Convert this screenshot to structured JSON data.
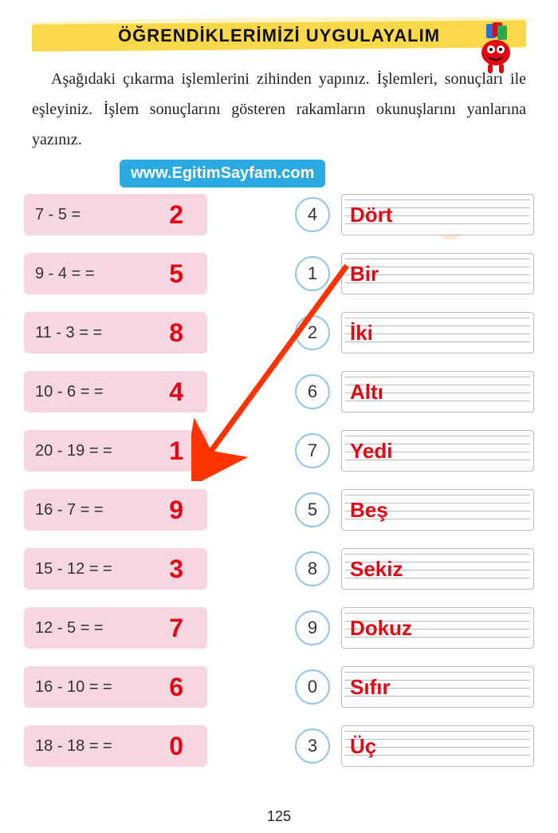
{
  "header": {
    "title": "ÖĞRENDİKLERİMİZİ UYGULAYALIM",
    "banner_color": "#f9d94a"
  },
  "instructions": "Aşağıdaki çıkarma işlemlerini zihinden yapınız. İşlemleri, sonuçları ile eşleyiniz. İşlem sonuçlarını gösteren rakamların okunuşlarını yanlarına yazınız.",
  "watermark": "www.EgitimSayfam.com",
  "watermark_bg": "#29abe2",
  "problems": [
    {
      "expr": "7 - 5 =",
      "answer": "2"
    },
    {
      "expr": "9 - 4 = =",
      "answer": "5"
    },
    {
      "expr": "11 - 3 = =",
      "answer": "8"
    },
    {
      "expr": "10 - 6 = =",
      "answer": "4"
    },
    {
      "expr": "20 - 19 = =",
      "answer": "1"
    },
    {
      "expr": "16 - 7 = =",
      "answer": "9"
    },
    {
      "expr": "15 - 12 = =",
      "answer": "3"
    },
    {
      "expr": "12 - 5 = =",
      "answer": "7"
    },
    {
      "expr": "16 - 10 = =",
      "answer": "6"
    },
    {
      "expr": "18 - 18 = =",
      "answer": "0"
    }
  ],
  "answers": [
    {
      "num": "4",
      "word": "Dört"
    },
    {
      "num": "1",
      "word": "Bir"
    },
    {
      "num": "2",
      "word": "İki"
    },
    {
      "num": "6",
      "word": "Altı"
    },
    {
      "num": "7",
      "word": "Yedi"
    },
    {
      "num": "5",
      "word": "Beş"
    },
    {
      "num": "8",
      "word": "Sekiz"
    },
    {
      "num": "9",
      "word": "Dokuz"
    },
    {
      "num": "0",
      "word": "Sıfır"
    },
    {
      "num": "3",
      "word": "Üç"
    }
  ],
  "colors": {
    "problem_bg": "#f6d6e0",
    "answer_red": "#e30613",
    "circle_border": "#8fc3e8",
    "arrow": "#ff3300"
  },
  "arrow": {
    "from_answer_index": 1,
    "to_problem_index": 4,
    "stroke_width": 7
  },
  "page_number": "125"
}
